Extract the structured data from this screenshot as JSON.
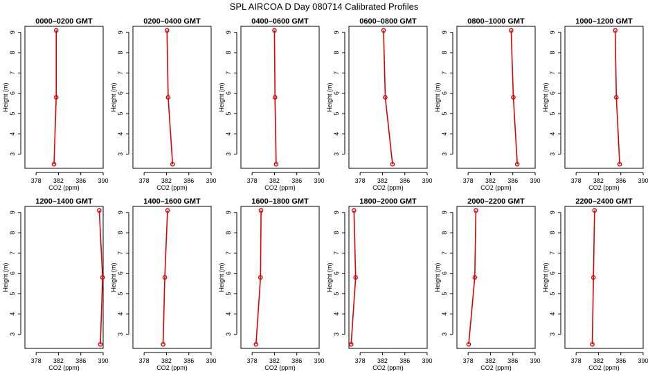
{
  "title": "SPL AIRCOA D  Day 080714  Calibrated Profiles",
  "colors": {
    "series": "#dd0000"
  },
  "chart_data": [
    {
      "type": "line",
      "title": "0000–0200 GMT",
      "xlabel": "CO2 (ppm)",
      "ylabel": "Height (m)",
      "xlim": [
        376,
        390
      ],
      "ylim": [
        2.3,
        9.3
      ],
      "xticks": [
        378,
        382,
        386,
        390
      ],
      "yticks": [
        3,
        4,
        5,
        6,
        7,
        8,
        9
      ],
      "grid": false,
      "series": [
        {
          "x": [
            381.2,
            381.6,
            381.6
          ],
          "y": [
            2.5,
            5.8,
            9.1
          ]
        }
      ]
    },
    {
      "type": "line",
      "title": "0200–0400 GMT",
      "xlabel": "CO2 (ppm)",
      "ylabel": "Height (m)",
      "xlim": [
        376,
        390
      ],
      "ylim": [
        2.3,
        9.3
      ],
      "xticks": [
        378,
        382,
        386,
        390
      ],
      "yticks": [
        3,
        4,
        5,
        6,
        7,
        8,
        9
      ],
      "grid": false,
      "series": [
        {
          "x": [
            383.1,
            382.3,
            382.1
          ],
          "y": [
            2.5,
            5.8,
            9.1
          ]
        }
      ]
    },
    {
      "type": "line",
      "title": "0400–0600 GMT",
      "xlabel": "CO2 (ppm)",
      "ylabel": "Height (m)",
      "xlim": [
        376,
        390
      ],
      "ylim": [
        2.3,
        9.3
      ],
      "xticks": [
        378,
        382,
        386,
        390
      ],
      "yticks": [
        3,
        4,
        5,
        6,
        7,
        8,
        9
      ],
      "grid": false,
      "series": [
        {
          "x": [
            382.3,
            382.1,
            382.0
          ],
          "y": [
            2.5,
            5.8,
            9.1
          ]
        }
      ]
    },
    {
      "type": "line",
      "title": "0600–0800 GMT",
      "xlabel": "CO2 (ppm)",
      "ylabel": "Height (m)",
      "xlim": [
        376,
        390
      ],
      "ylim": [
        2.3,
        9.3
      ],
      "xticks": [
        378,
        382,
        386,
        390
      ],
      "yticks": [
        3,
        4,
        5,
        6,
        7,
        8,
        9
      ],
      "grid": false,
      "series": [
        {
          "x": [
            383.8,
            382.5,
            382.2
          ],
          "y": [
            2.5,
            5.8,
            9.1
          ]
        }
      ]
    },
    {
      "type": "line",
      "title": "0800–1000 GMT",
      "xlabel": "CO2 (ppm)",
      "ylabel": "Height (m)",
      "xlim": [
        376,
        390
      ],
      "ylim": [
        2.3,
        9.3
      ],
      "xticks": [
        378,
        382,
        386,
        390
      ],
      "yticks": [
        3,
        4,
        5,
        6,
        7,
        8,
        9
      ],
      "grid": false,
      "series": [
        {
          "x": [
            386.8,
            386.1,
            385.7
          ],
          "y": [
            2.5,
            5.8,
            9.1
          ]
        }
      ]
    },
    {
      "type": "line",
      "title": "1000–1200 GMT",
      "xlabel": "CO2 (ppm)",
      "ylabel": "Height (m)",
      "xlim": [
        376,
        390
      ],
      "ylim": [
        2.3,
        9.3
      ],
      "xticks": [
        378,
        382,
        386,
        390
      ],
      "yticks": [
        3,
        4,
        5,
        6,
        7,
        8,
        9
      ],
      "grid": false,
      "series": [
        {
          "x": [
            385.8,
            385.2,
            385.0
          ],
          "y": [
            2.5,
            5.8,
            9.1
          ]
        }
      ]
    },
    {
      "type": "line",
      "title": "1200–1400 GMT",
      "xlabel": "CO2 (ppm)",
      "ylabel": "Height (m)",
      "xlim": [
        376,
        390
      ],
      "ylim": [
        2.3,
        9.3
      ],
      "xticks": [
        378,
        382,
        386,
        390
      ],
      "yticks": [
        3,
        4,
        5,
        6,
        7,
        8,
        9
      ],
      "grid": false,
      "series": [
        {
          "x": [
            389.5,
            389.9,
            389.3
          ],
          "y": [
            2.5,
            5.8,
            9.1
          ]
        }
      ]
    },
    {
      "type": "line",
      "title": "1400–1600 GMT",
      "xlabel": "CO2 (ppm)",
      "ylabel": "Height (m)",
      "xlim": [
        376,
        390
      ],
      "ylim": [
        2.3,
        9.3
      ],
      "xticks": [
        378,
        382,
        386,
        390
      ],
      "yticks": [
        3,
        4,
        5,
        6,
        7,
        8,
        9
      ],
      "grid": false,
      "series": [
        {
          "x": [
            381.4,
            381.7,
            382.2
          ],
          "y": [
            2.5,
            5.8,
            9.1
          ]
        }
      ]
    },
    {
      "type": "line",
      "title": "1600–1800 GMT",
      "xlabel": "CO2 (ppm)",
      "ylabel": "Height (m)",
      "xlim": [
        376,
        390
      ],
      "ylim": [
        2.3,
        9.3
      ],
      "xticks": [
        378,
        382,
        386,
        390
      ],
      "yticks": [
        3,
        4,
        5,
        6,
        7,
        8,
        9
      ],
      "grid": false,
      "series": [
        {
          "x": [
            378.7,
            379.5,
            379.6
          ],
          "y": [
            2.5,
            5.8,
            9.1
          ]
        }
      ]
    },
    {
      "type": "line",
      "title": "1800–2000 GMT",
      "xlabel": "CO2 (ppm)",
      "ylabel": "Height (m)",
      "xlim": [
        376,
        390
      ],
      "ylim": [
        2.3,
        9.3
      ],
      "xticks": [
        378,
        382,
        386,
        390
      ],
      "yticks": [
        3,
        4,
        5,
        6,
        7,
        8,
        9
      ],
      "grid": false,
      "series": [
        {
          "x": [
            376.4,
            377.2,
            376.9
          ],
          "y": [
            2.5,
            5.8,
            9.1
          ]
        }
      ]
    },
    {
      "type": "line",
      "title": "2000–2200 GMT",
      "xlabel": "CO2 (ppm)",
      "ylabel": "Height (m)",
      "xlim": [
        376,
        390
      ],
      "ylim": [
        2.3,
        9.3
      ],
      "xticks": [
        378,
        382,
        386,
        390
      ],
      "yticks": [
        3,
        4,
        5,
        6,
        7,
        8,
        9
      ],
      "grid": false,
      "series": [
        {
          "x": [
            378.1,
            379.2,
            379.4
          ],
          "y": [
            2.5,
            5.8,
            9.1
          ]
        }
      ]
    },
    {
      "type": "line",
      "title": "2200–2400 GMT",
      "xlabel": "CO2 (ppm)",
      "ylabel": "Height (m)",
      "xlim": [
        376,
        390
      ],
      "ylim": [
        2.3,
        9.3
      ],
      "xticks": [
        378,
        382,
        386,
        390
      ],
      "yticks": [
        3,
        4,
        5,
        6,
        7,
        8,
        9
      ],
      "grid": false,
      "series": [
        {
          "x": [
            380.9,
            381.1,
            381.3
          ],
          "y": [
            2.5,
            5.8,
            9.1
          ]
        }
      ]
    }
  ]
}
